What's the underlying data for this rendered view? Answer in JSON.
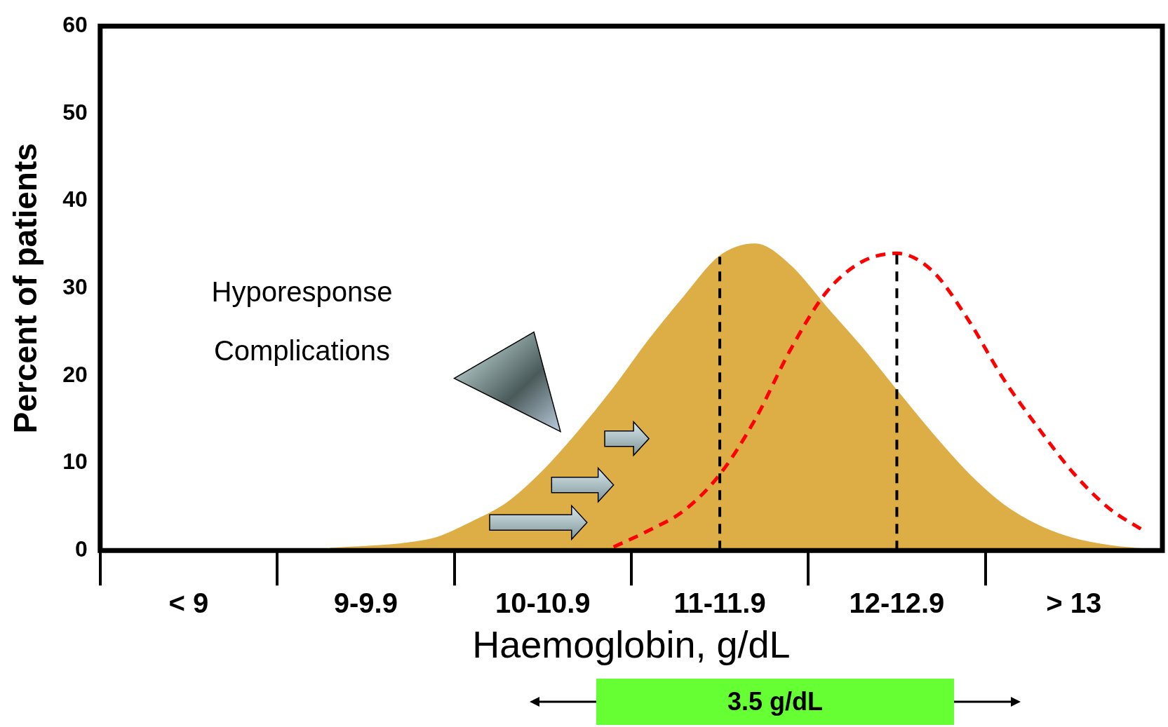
{
  "chart_data": {
    "type": "area",
    "xlabel": "Haemoglobin, g/dL",
    "ylabel": "Percent of patients",
    "ylim": [
      0,
      60
    ],
    "yticks": [
      0,
      10,
      20,
      30,
      40,
      50,
      60
    ],
    "categories": [
      null,
      null,
      "< 9",
      null,
      null,
      null,
      null,
      "9-9.9",
      null,
      null,
      null,
      null,
      "10-10.9",
      null,
      null,
      null,
      null,
      "11-11.9",
      null,
      null,
      null,
      null,
      "12-12.9",
      null,
      null,
      null,
      null,
      "> 13",
      null,
      null
    ],
    "grid": false,
    "legend": false,
    "marker": "none",
    "series": [
      {
        "color": "#dcae45",
        "values": [
          null,
          null,
          null,
          null,
          null,
          null,
          0.2,
          0.4,
          0.7,
          1.4,
          3.2,
          5.4,
          9,
          13.5,
          18.5,
          24,
          29,
          33.6,
          35,
          32.5,
          27.8,
          23.2,
          18.2,
          13.3,
          8.8,
          5.2,
          2.8,
          1.3,
          0.5,
          0.1
        ]
      },
      {
        "type": "line",
        "color": "#ff0000",
        "line_style": "dashed",
        "values": [
          null,
          null,
          null,
          null,
          null,
          null,
          null,
          null,
          null,
          null,
          null,
          null,
          null,
          null,
          0.4,
          2.3,
          4.6,
          8.7,
          15,
          23,
          29.5,
          33,
          34,
          32,
          26.5,
          19.7,
          14,
          8.8,
          4.8,
          2.2
        ]
      }
    ],
    "ref_lines": [
      {
        "axis": "x",
        "value": "11-11.9",
        "color": "#000000",
        "line_style": "dashed"
      },
      {
        "axis": "x",
        "value": "12-12.9",
        "color": "#000000",
        "line_style": "dashed"
      }
    ],
    "annotations": [
      "Hyporesponse",
      "Complications",
      "3.5 g/dL"
    ]
  }
}
